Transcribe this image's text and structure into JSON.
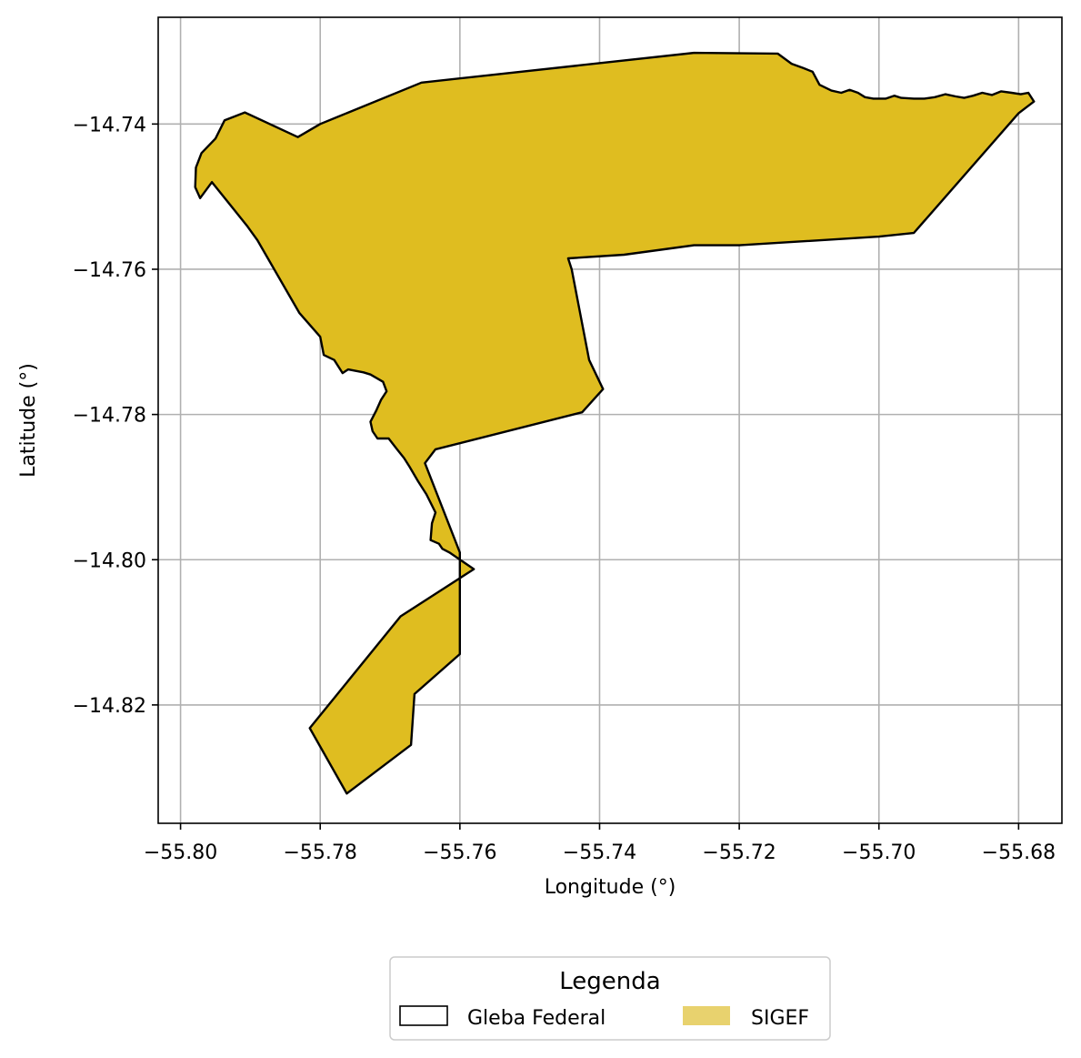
{
  "chart_data": {
    "type": "map",
    "xlabel": "Longitude (°)",
    "ylabel": "Latitude (°)",
    "xlim": [
      -55.8032,
      -55.6738
    ],
    "ylim": [
      -14.8363,
      -14.7253
    ],
    "grid": true,
    "x_ticks": [
      -55.8,
      -55.78,
      -55.76,
      -55.74,
      -55.72,
      -55.7,
      -55.68
    ],
    "x_tick_labels": [
      "−55.80",
      "−55.78",
      "−55.76",
      "−55.74",
      "−55.72",
      "−55.70",
      "−55.68"
    ],
    "y_ticks": [
      -14.74,
      -14.76,
      -14.78,
      -14.8,
      -14.82
    ],
    "y_tick_labels": [
      "−14.74",
      "−14.76",
      "−14.78",
      "−14.80",
      "−14.82"
    ],
    "legend": {
      "title": "Legenda",
      "placement": "bottom-center",
      "entries": [
        {
          "label": "Gleba Federal",
          "style": "outline",
          "edge_color": "#000000",
          "fill_color": "#ffffff"
        },
        {
          "label": "SIGEF",
          "style": "fill",
          "fill_color": "#e8d26e"
        }
      ]
    },
    "polygon": {
      "fill_color": "#dfbd20",
      "edge_color": "#000000",
      "coordinates": [
        [
          -55.7937,
          -14.7395
        ],
        [
          -55.7908,
          -14.7384
        ],
        [
          -55.7832,
          -14.7418
        ],
        [
          -55.78,
          -14.74
        ],
        [
          -55.7655,
          -14.7343
        ],
        [
          -55.7265,
          -14.7302
        ],
        [
          -55.7145,
          -14.7303
        ],
        [
          -55.7125,
          -14.7317
        ],
        [
          -55.7108,
          -14.7323
        ],
        [
          -55.7095,
          -14.7328
        ],
        [
          -55.7085,
          -14.7346
        ],
        [
          -55.7068,
          -14.7354
        ],
        [
          -55.7054,
          -14.7357
        ],
        [
          -55.7042,
          -14.7353
        ],
        [
          -55.703,
          -14.7357
        ],
        [
          -55.702,
          -14.7363
        ],
        [
          -55.7008,
          -14.7365
        ],
        [
          -55.699,
          -14.7365
        ],
        [
          -55.6978,
          -14.7361
        ],
        [
          -55.6968,
          -14.7364
        ],
        [
          -55.695,
          -14.7365
        ],
        [
          -55.6935,
          -14.7365
        ],
        [
          -55.692,
          -14.7363
        ],
        [
          -55.6905,
          -14.7359
        ],
        [
          -55.689,
          -14.7362
        ],
        [
          -55.6878,
          -14.7364
        ],
        [
          -55.6865,
          -14.7361
        ],
        [
          -55.6852,
          -14.7357
        ],
        [
          -55.6838,
          -14.736
        ],
        [
          -55.6825,
          -14.7355
        ],
        [
          -55.681,
          -14.7357
        ],
        [
          -55.6797,
          -14.7359
        ],
        [
          -55.6786,
          -14.7357
        ],
        [
          -55.6778,
          -14.7369
        ],
        [
          -55.68,
          -14.7385
        ],
        [
          -55.695,
          -14.755
        ],
        [
          -55.7,
          -14.7555
        ],
        [
          -55.72,
          -14.7567
        ],
        [
          -55.7265,
          -14.7567
        ],
        [
          -55.7365,
          -14.758
        ],
        [
          -55.7445,
          -14.7585
        ],
        [
          -55.744,
          -14.76
        ],
        [
          -55.7415,
          -14.7725
        ],
        [
          -55.7395,
          -14.7765
        ],
        [
          -55.7425,
          -14.7797
        ],
        [
          -55.7635,
          -14.7848
        ],
        [
          -55.765,
          -14.7867
        ],
        [
          -55.76,
          -14.799
        ],
        [
          -55.76,
          -14.813
        ],
        [
          -55.7665,
          -14.8185
        ],
        [
          -55.767,
          -14.8255
        ],
        [
          -55.7762,
          -14.8322
        ],
        [
          -55.7815,
          -14.8232
        ],
        [
          -55.7685,
          -14.8078
        ],
        [
          -55.758,
          -14.8013
        ],
        [
          -55.7615,
          -14.799
        ],
        [
          -55.7625,
          -14.7985
        ],
        [
          -55.763,
          -14.7978
        ],
        [
          -55.7642,
          -14.7973
        ],
        [
          -55.764,
          -14.795
        ],
        [
          -55.7635,
          -14.7935
        ],
        [
          -55.7648,
          -14.791
        ],
        [
          -55.766,
          -14.7892
        ],
        [
          -55.7672,
          -14.7872
        ],
        [
          -55.768,
          -14.786
        ],
        [
          -55.769,
          -14.7848
        ],
        [
          -55.7702,
          -14.7833
        ],
        [
          -55.7718,
          -14.7833
        ],
        [
          -55.7725,
          -14.7823
        ],
        [
          -55.7728,
          -14.781
        ],
        [
          -55.772,
          -14.7795
        ],
        [
          -55.7713,
          -14.778
        ],
        [
          -55.7705,
          -14.7768
        ],
        [
          -55.771,
          -14.7755
        ],
        [
          -55.7728,
          -14.7745
        ],
        [
          -55.7738,
          -14.7742
        ],
        [
          -55.776,
          -14.7738
        ],
        [
          -55.7768,
          -14.7743
        ],
        [
          -55.778,
          -14.7725
        ],
        [
          -55.7795,
          -14.7718
        ],
        [
          -55.78,
          -14.7693
        ],
        [
          -55.783,
          -14.766
        ],
        [
          -55.789,
          -14.756
        ],
        [
          -55.7905,
          -14.754
        ],
        [
          -55.7955,
          -14.748
        ],
        [
          -55.7972,
          -14.7502
        ],
        [
          -55.7979,
          -14.7487
        ],
        [
          -55.7978,
          -14.746
        ],
        [
          -55.797,
          -14.744
        ],
        [
          -55.795,
          -14.742
        ]
      ]
    }
  }
}
